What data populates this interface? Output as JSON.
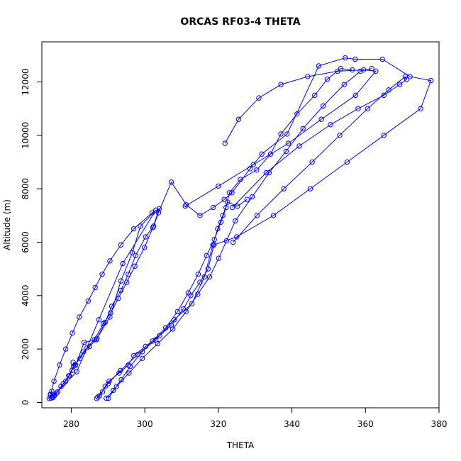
{
  "chart_data": {
    "type": "line",
    "title": "ORCAS RF03-4 THETA",
    "xlabel": "THETA",
    "ylabel": "Altitude (m)",
    "xlim": [
      272,
      380
    ],
    "ylim": [
      -200,
      13500
    ],
    "x_ticks": [
      280,
      300,
      320,
      340,
      360,
      380
    ],
    "y_ticks": [
      0,
      2000,
      4000,
      6000,
      8000,
      10000,
      12000
    ],
    "grid": false,
    "legend": "none",
    "markers": "open-circle",
    "series": [
      {
        "color": "#0000ff",
        "x": [
          274.0,
          274.3,
          274.7,
          275.0,
          275.4,
          276.0,
          277.2,
          278.5,
          279.5,
          280.2,
          281.0,
          283.3,
          285.0,
          287.0,
          289.2,
          291.0,
          293.5,
          295.5,
          297.5,
          300.2,
          302.4,
          303.7,
          307.2,
          311.3,
          315.0,
          318.6,
          321.6,
          323.7,
          328.6,
          331.8,
          338.7,
          347.3,
          354.5,
          357.2,
          364.6,
          372.1,
          377.8,
          375.0,
          365.0,
          355.0,
          345.0,
          335.0,
          325.0,
          318.8,
          317.2,
          315.0,
          312.5,
          310.5,
          307.2,
          304.0,
          300.2,
          297.0,
          295.5,
          293.0,
          290.3,
          289.2,
          288.5,
          287.7,
          286.9
        ],
        "y": [
          150,
          300,
          420,
          180,
          250,
          350,
          600,
          800,
          1000,
          1200,
          1400,
          1900,
          2100,
          2400,
          3000,
          3600,
          4200,
          4800,
          5500,
          6200,
          6600,
          7100,
          8250,
          7400,
          7000,
          7300,
          7600,
          7850,
          8750,
          9300,
          10050,
          12600,
          12900,
          12850,
          12850,
          12200,
          12050,
          11000,
          10000,
          9000,
          8000,
          7000,
          6200,
          5900,
          5000,
          4500,
          4000,
          3500,
          2900,
          2500,
          2100,
          1750,
          1400,
          1100,
          800,
          600,
          400,
          250,
          150
        ]
      },
      {
        "color": "#0000ff",
        "x": [
          274.5,
          275.2,
          276.3,
          277.8,
          279.3,
          280.6,
          282.4,
          284.3,
          286.3,
          288.7,
          290.7,
          292.8,
          295.1,
          297.3,
          299.9,
          302.2,
          303.9,
          302.0,
          297.0,
          293.5,
          290.5,
          288.4,
          286.5,
          284.6,
          282.2,
          280.3,
          278.5,
          276.8,
          275.3,
          274.4
        ],
        "y": [
          160,
          280,
          400,
          700,
          1000,
          1350,
          1650,
          2050,
          2350,
          2950,
          3350,
          3900,
          4500,
          5100,
          5800,
          6550,
          7250,
          7100,
          6500,
          5900,
          5300,
          4800,
          4300,
          3800,
          3200,
          2600,
          2000,
          1400,
          800,
          300
        ]
      },
      {
        "color": "#0000ff",
        "x": [
          280.5,
          281.2,
          283.5,
          286.8,
          290.5,
          293.5,
          296.6,
          298.8,
          303.0,
          294.0,
          287.5,
          281.5,
          274.8
        ],
        "y": [
          1500,
          1400,
          2250,
          2350,
          3200,
          4550,
          5600,
          6600,
          7200,
          5200,
          3100,
          1150,
          200
        ]
      },
      {
        "color": "#0000ff",
        "x": [
          287.2,
          290.0,
          293.4,
          298.1,
          303.0,
          308.0,
          312.8,
          316.2,
          318.5,
          319.8,
          321.2,
          322.5,
          325.2,
          327.8
        ],
        "y": [
          200,
          700,
          1200,
          1800,
          2350,
          3100,
          3700,
          4700,
          5900,
          6500,
          7000,
          7500,
          7350,
          7600
        ]
      },
      {
        "color": "#0000ff",
        "x": [
          289.5,
          291.4,
          293.6,
          296.0,
          299.3,
          302.1,
          305.7,
          308.9,
          311.8,
          314.5,
          316.8,
          318.9,
          320.7,
          322.1,
          323.0,
          326.0,
          330.4,
          334.2,
          337.0,
          341.4,
          346.2,
          349.6,
          353.3,
          356.4
        ],
        "y": [
          160,
          450,
          850,
          1350,
          1900,
          2300,
          2800,
          3400,
          4100,
          4800,
          5500,
          6100,
          6750,
          7300,
          7850,
          8350,
          8700,
          9300,
          10050,
          10800,
          11500,
          12100,
          12500,
          12450
        ]
      },
      {
        "color": "#0000ff",
        "x": [
          290.1,
          292.3,
          295.7,
          299.3,
          303.5,
          307.6,
          311.2,
          314.4,
          317.6,
          320.1,
          322.2,
          324.6,
          329.2,
          333.8,
          338.4,
          343.0,
          348.5,
          354.2,
          358.6,
          361.7
        ],
        "y": [
          160,
          600,
          1100,
          1650,
          2200,
          2750,
          3400,
          4050,
          4700,
          5400,
          6050,
          6800,
          7700,
          8600,
          9400,
          10250,
          11100,
          11900,
          12400,
          12500
        ]
      },
      {
        "color": "#0000ff",
        "x": [
          324.0,
          330.5,
          337.8,
          345.5,
          353.0,
          360.6,
          366.3,
          370.8,
          371.2,
          369.3,
          365.0,
          358.0,
          350.5,
          342.0,
          333.0,
          323.8
        ],
        "y": [
          6000,
          7000,
          8000,
          9000,
          10000,
          11000,
          11700,
          12200,
          12100,
          11900,
          11500,
          11000,
          10400,
          9600,
          8600,
          7300
        ]
      },
      {
        "color": "#0000ff",
        "x": [
          311.0,
          320.0,
          329.5,
          339.0,
          348.0,
          357.3,
          362.8,
          359.5,
          352.4,
          344.3,
          337.0,
          331.0,
          325.5,
          321.8
        ],
        "y": [
          7350,
          8100,
          8900,
          9700,
          10600,
          11500,
          12400,
          12450,
          12400,
          12200,
          11900,
          11400,
          10600,
          9700
        ]
      }
    ]
  }
}
